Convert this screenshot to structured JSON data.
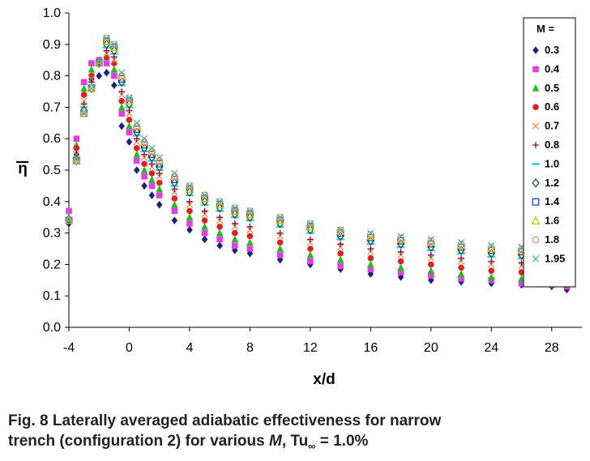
{
  "chart_data": {
    "type": "scatter",
    "xlabel": "x/d",
    "ylabel": "η",
    "xlim": [
      -4,
      30
    ],
    "ylim": [
      0.0,
      1.0
    ],
    "xticks": [
      "-4",
      "0",
      "4",
      "8",
      "12",
      "16",
      "20",
      "24",
      "28"
    ],
    "yticks": [
      "0.0",
      "0.1",
      "0.2",
      "0.3",
      "0.4",
      "0.5",
      "0.6",
      "0.7",
      "0.8",
      "0.9",
      "1.0"
    ],
    "legend_title": "M =",
    "legend_placement": "right",
    "grid": false,
    "series": [
      {
        "name": "0.3",
        "marker": "diamond",
        "color": "#1a237e",
        "peak": 0.81,
        "x": [
          -4,
          -3.5,
          -3,
          -2.5,
          -2,
          -1.5,
          -1,
          -0.5,
          0,
          0.5,
          1,
          1.5,
          2,
          3,
          4,
          5,
          6,
          7,
          8,
          10,
          12,
          14,
          16,
          18,
          20,
          22,
          24,
          26,
          28,
          29
        ],
        "y": [
          0.33,
          0.55,
          0.74,
          0.79,
          0.8,
          0.81,
          0.77,
          0.64,
          0.59,
          0.5,
          0.45,
          0.42,
          0.39,
          0.34,
          0.31,
          0.28,
          0.26,
          0.245,
          0.235,
          0.215,
          0.2,
          0.185,
          0.17,
          0.16,
          0.15,
          0.145,
          0.14,
          0.135,
          0.13,
          0.12
        ]
      },
      {
        "name": "0.4",
        "marker": "square",
        "color": "#e040e0",
        "peak": 0.85,
        "x": [
          -4,
          -3.5,
          -3,
          -2.5,
          -2,
          -1.5,
          -1,
          -0.5,
          0,
          0.5,
          1,
          1.5,
          2,
          3,
          4,
          5,
          6,
          7,
          8,
          10,
          12,
          14,
          16,
          18,
          20,
          22,
          24,
          26,
          28,
          29
        ],
        "y": [
          0.37,
          0.6,
          0.78,
          0.84,
          0.85,
          0.84,
          0.8,
          0.68,
          0.62,
          0.53,
          0.48,
          0.45,
          0.42,
          0.37,
          0.33,
          0.3,
          0.28,
          0.26,
          0.25,
          0.23,
          0.21,
          0.195,
          0.185,
          0.175,
          0.165,
          0.155,
          0.15,
          0.14,
          0.135,
          0.13
        ]
      },
      {
        "name": "0.5",
        "marker": "triangle",
        "color": "#22bb22",
        "peak": 0.86,
        "x": [
          -4,
          -3.5,
          -3,
          -2.5,
          -2,
          -1.5,
          -1,
          -0.5,
          0,
          0.5,
          1,
          1.5,
          2,
          3,
          4,
          5,
          6,
          7,
          8,
          10,
          12,
          14,
          16,
          18,
          20,
          22,
          24,
          26,
          28
        ],
        "y": [
          0.35,
          0.58,
          0.76,
          0.82,
          0.85,
          0.86,
          0.82,
          0.7,
          0.64,
          0.55,
          0.5,
          0.47,
          0.44,
          0.39,
          0.35,
          0.32,
          0.3,
          0.28,
          0.27,
          0.25,
          0.23,
          0.215,
          0.2,
          0.19,
          0.18,
          0.17,
          0.16,
          0.155,
          0.15
        ]
      },
      {
        "name": "0.6",
        "marker": "circle",
        "color": "#dd2222",
        "peak": 0.86,
        "x": [
          -4,
          -3.5,
          -3,
          -2.5,
          -2,
          -1.5,
          -1,
          -0.5,
          0,
          0.5,
          1,
          1.5,
          2,
          3,
          4,
          5,
          6,
          7,
          8,
          10,
          12,
          14,
          16,
          18,
          20,
          22,
          24,
          26,
          28
        ],
        "y": [
          0.34,
          0.57,
          0.74,
          0.8,
          0.84,
          0.86,
          0.84,
          0.72,
          0.66,
          0.57,
          0.52,
          0.49,
          0.46,
          0.41,
          0.37,
          0.34,
          0.32,
          0.3,
          0.29,
          0.27,
          0.25,
          0.235,
          0.22,
          0.21,
          0.2,
          0.19,
          0.18,
          0.175,
          0.17
        ]
      },
      {
        "name": "0.7",
        "marker": "x",
        "color": "#e09050",
        "peak": 0.87,
        "x": [
          -4,
          -3.5,
          -3,
          -2.5,
          -2,
          -1.5,
          -1,
          -0.5,
          0,
          0.5,
          1,
          1.5,
          2,
          3,
          4,
          5,
          6,
          7,
          8,
          10,
          12,
          14,
          16,
          18,
          20,
          22,
          24,
          26,
          28
        ],
        "y": [
          0.34,
          0.55,
          0.72,
          0.79,
          0.84,
          0.87,
          0.85,
          0.74,
          0.68,
          0.59,
          0.54,
          0.51,
          0.48,
          0.43,
          0.39,
          0.36,
          0.34,
          0.32,
          0.31,
          0.29,
          0.27,
          0.255,
          0.24,
          0.23,
          0.22,
          0.21,
          0.2,
          0.195,
          0.19
        ]
      },
      {
        "name": "0.8",
        "marker": "plus",
        "color": "#880044",
        "peak": 0.88,
        "x": [
          -4,
          -3.5,
          -3,
          -2.5,
          -2,
          -1.5,
          -1,
          -0.5,
          0,
          0.5,
          1,
          1.5,
          2,
          3,
          4,
          5,
          6,
          7,
          8,
          10,
          12,
          14,
          16,
          18,
          20,
          22,
          24,
          26,
          28
        ],
        "y": [
          0.34,
          0.54,
          0.71,
          0.78,
          0.84,
          0.88,
          0.86,
          0.75,
          0.69,
          0.6,
          0.55,
          0.52,
          0.49,
          0.44,
          0.4,
          0.37,
          0.35,
          0.33,
          0.32,
          0.3,
          0.28,
          0.265,
          0.25,
          0.24,
          0.23,
          0.22,
          0.21,
          0.205,
          0.2
        ]
      },
      {
        "name": "1.0",
        "marker": "dash",
        "color": "#22ccee",
        "peak": 0.89,
        "x": [
          -4,
          -3.5,
          -3,
          -2.5,
          -2,
          -1.5,
          -1,
          -0.5,
          0,
          0.5,
          1,
          1.5,
          2,
          3,
          4,
          5,
          6,
          7,
          8,
          10,
          12,
          14,
          16,
          18,
          20,
          22,
          24,
          26,
          28
        ],
        "y": [
          0.34,
          0.54,
          0.7,
          0.77,
          0.84,
          0.89,
          0.87,
          0.77,
          0.7,
          0.61,
          0.56,
          0.53,
          0.5,
          0.45,
          0.42,
          0.39,
          0.37,
          0.35,
          0.34,
          0.32,
          0.3,
          0.28,
          0.265,
          0.255,
          0.245,
          0.235,
          0.225,
          0.22,
          0.215
        ]
      },
      {
        "name": "1.2",
        "marker": "diamond-open",
        "color": "#115511",
        "peak": 0.9,
        "x": [
          -4,
          -3.5,
          -3,
          -2.5,
          -2,
          -1.5,
          -1,
          -0.5,
          0,
          0.5,
          1,
          1.5,
          2,
          3,
          4,
          5,
          6,
          7,
          8,
          10,
          12,
          14,
          16,
          18,
          20,
          22,
          24,
          26,
          28
        ],
        "y": [
          0.34,
          0.53,
          0.69,
          0.76,
          0.84,
          0.9,
          0.88,
          0.78,
          0.71,
          0.62,
          0.57,
          0.54,
          0.51,
          0.46,
          0.43,
          0.4,
          0.38,
          0.36,
          0.35,
          0.33,
          0.31,
          0.29,
          0.275,
          0.265,
          0.255,
          0.245,
          0.235,
          0.23,
          0.225
        ]
      },
      {
        "name": "1.4",
        "marker": "square-open",
        "color": "#1133cc",
        "peak": 0.91,
        "x": [
          -4,
          -3.5,
          -3,
          -2.5,
          -2,
          -1.5,
          -1,
          -0.5,
          0,
          0.5,
          1,
          1.5,
          2,
          3,
          4,
          5,
          6,
          7,
          8,
          10,
          12,
          14,
          16,
          18,
          20,
          22,
          24,
          26,
          28
        ],
        "y": [
          0.34,
          0.53,
          0.68,
          0.76,
          0.84,
          0.91,
          0.89,
          0.79,
          0.72,
          0.63,
          0.58,
          0.55,
          0.52,
          0.47,
          0.44,
          0.41,
          0.39,
          0.37,
          0.36,
          0.34,
          0.32,
          0.3,
          0.285,
          0.275,
          0.265,
          0.255,
          0.245,
          0.24,
          0.235
        ]
      },
      {
        "name": "1.6",
        "marker": "triangle-open",
        "color": "#d4b800",
        "peak": 0.91,
        "x": [
          -4,
          -3.5,
          -3,
          -2.5,
          -2,
          -1.5,
          -1,
          -0.5,
          0,
          0.5,
          1,
          1.5,
          2,
          3,
          4,
          5,
          6,
          7,
          8,
          10,
          12,
          14,
          16,
          18,
          20,
          22,
          24,
          26,
          28
        ],
        "y": [
          0.34,
          0.53,
          0.68,
          0.76,
          0.84,
          0.91,
          0.89,
          0.8,
          0.72,
          0.64,
          0.59,
          0.56,
          0.53,
          0.48,
          0.44,
          0.41,
          0.39,
          0.37,
          0.36,
          0.34,
          0.32,
          0.305,
          0.29,
          0.28,
          0.27,
          0.26,
          0.25,
          0.245,
          0.24
        ]
      },
      {
        "name": "1.8",
        "marker": "circle-open",
        "color": "#ee8888",
        "peak": 0.92,
        "x": [
          -4,
          -3.5,
          -3,
          -2.5,
          -2,
          -1.5,
          -1,
          -0.5,
          0,
          0.5,
          1,
          1.5,
          2,
          3,
          4,
          5,
          6,
          7,
          8,
          10,
          12,
          14,
          16,
          18,
          20,
          22,
          24,
          26,
          28
        ],
        "y": [
          0.34,
          0.53,
          0.68,
          0.76,
          0.84,
          0.92,
          0.9,
          0.8,
          0.73,
          0.64,
          0.59,
          0.56,
          0.53,
          0.48,
          0.45,
          0.42,
          0.4,
          0.38,
          0.37,
          0.35,
          0.33,
          0.31,
          0.295,
          0.285,
          0.275,
          0.265,
          0.255,
          0.25,
          0.245
        ]
      },
      {
        "name": "1.95",
        "marker": "x",
        "color": "#44bb88",
        "peak": 0.92,
        "x": [
          -4,
          -3.5,
          -3,
          -2.5,
          -2,
          -1.5,
          -1,
          -0.5,
          0,
          0.5,
          1,
          1.5,
          2,
          3,
          4,
          5,
          6,
          7,
          8,
          10,
          12,
          14,
          16,
          18,
          20,
          22,
          24,
          26,
          28
        ],
        "y": [
          0.34,
          0.53,
          0.68,
          0.76,
          0.84,
          0.92,
          0.9,
          0.81,
          0.73,
          0.65,
          0.6,
          0.57,
          0.54,
          0.49,
          0.45,
          0.42,
          0.4,
          0.38,
          0.37,
          0.35,
          0.33,
          0.31,
          0.3,
          0.29,
          0.28,
          0.27,
          0.26,
          0.255,
          0.25
        ]
      }
    ]
  },
  "caption": {
    "line1": "Fig. 8  Laterally averaged adiabatic effectiveness for narrow",
    "line2_prefix": "trench (configuration 2) for various ",
    "line2_var": "M",
    "line2_sep": ", Tu",
    "line2_sub": "∞",
    "line2_suffix": " = 1.0%"
  }
}
